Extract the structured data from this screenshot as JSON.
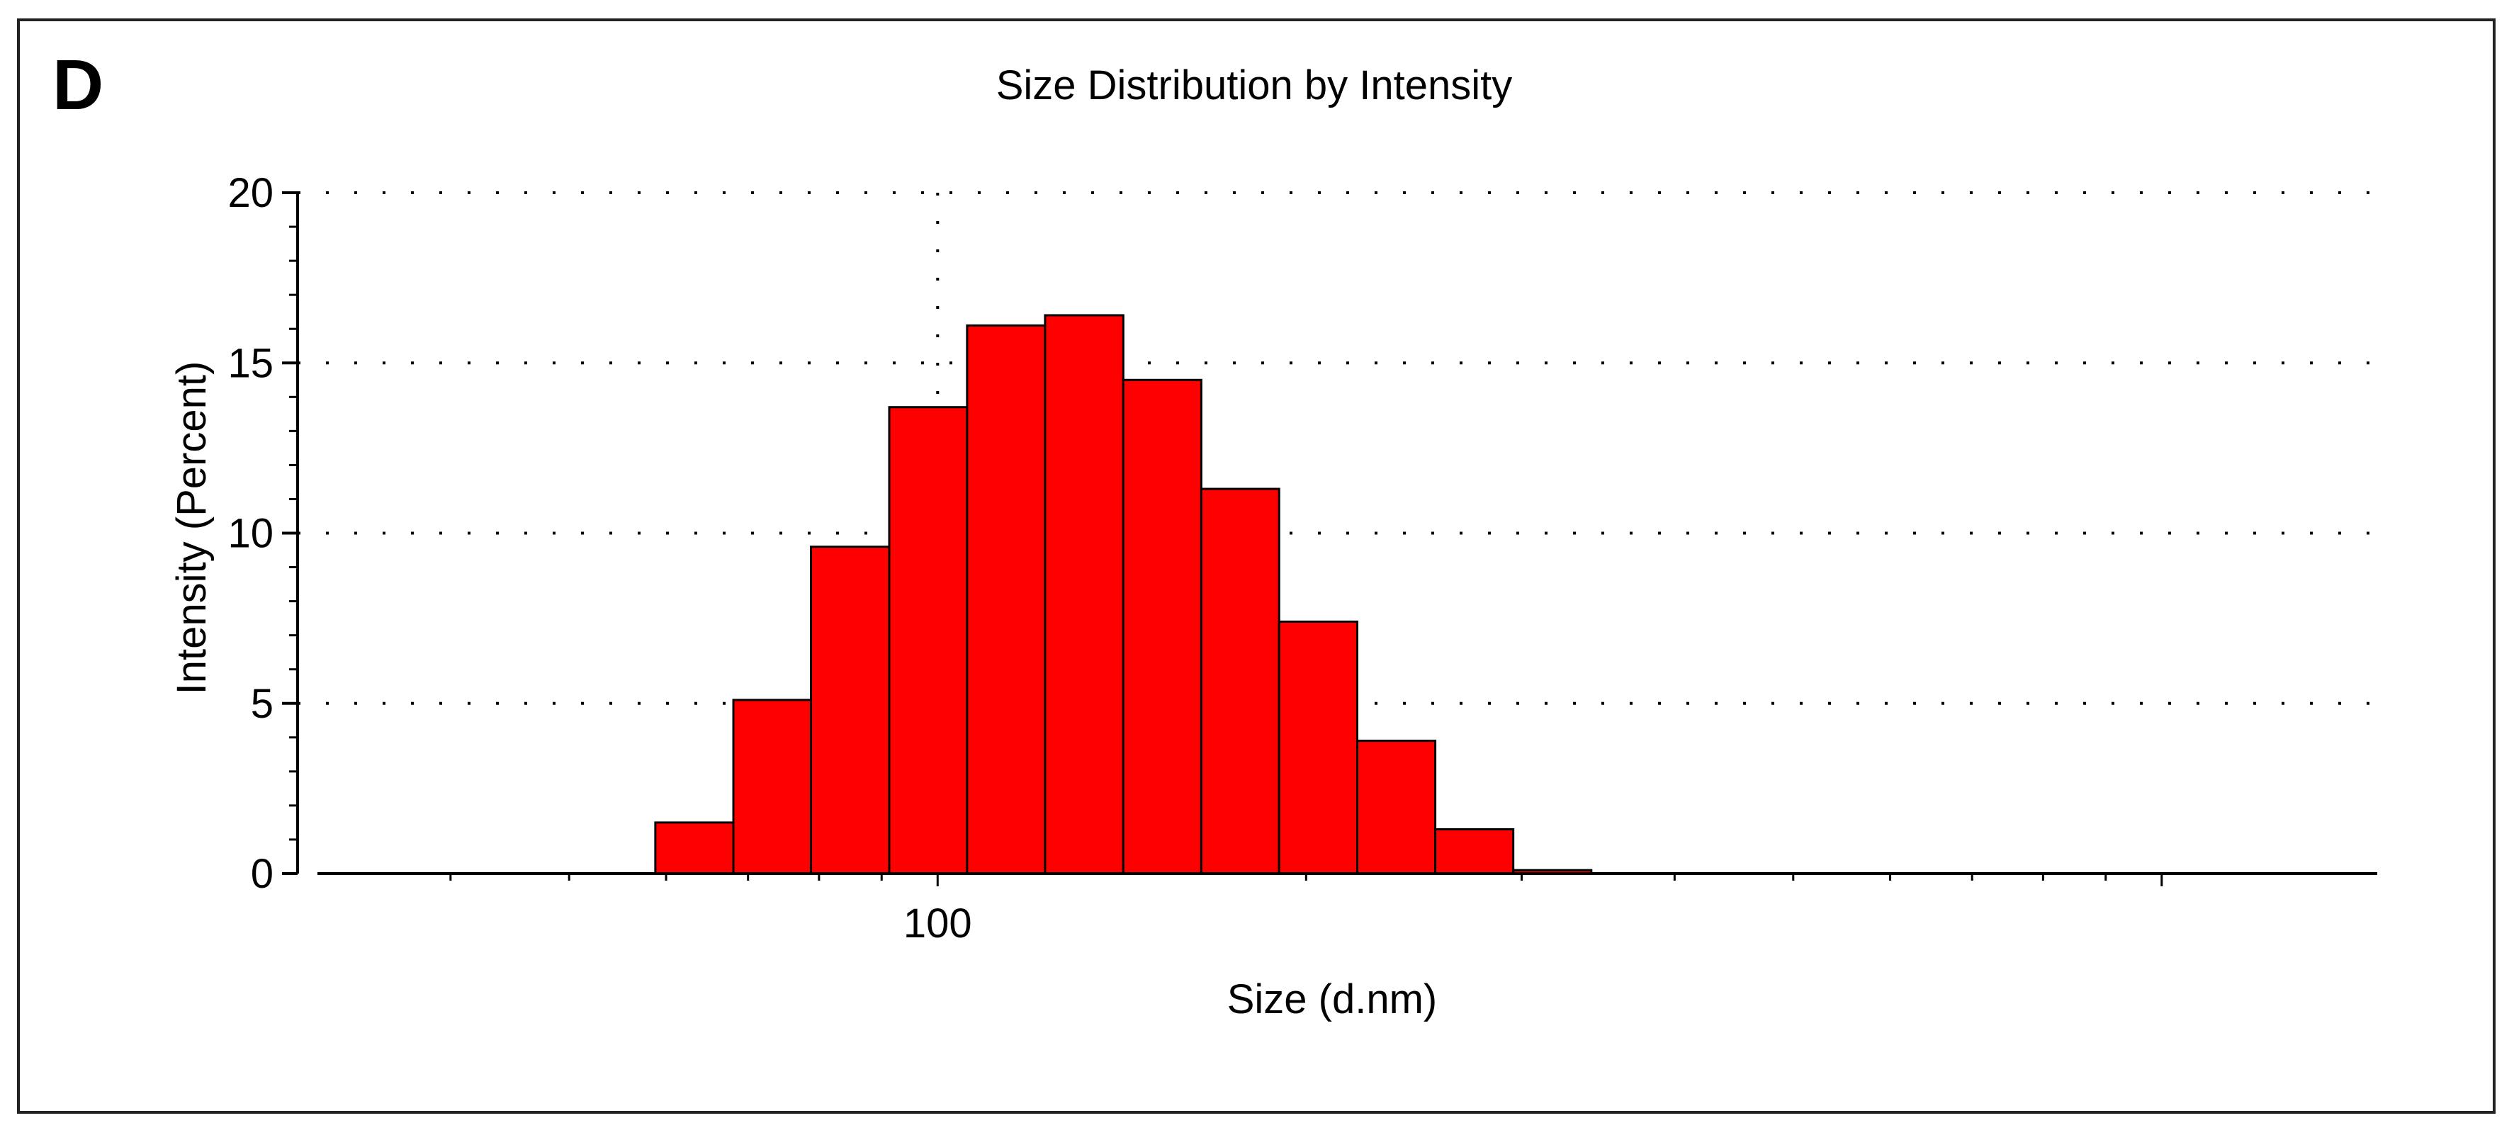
{
  "panel_label": "D",
  "chart_data": {
    "type": "bar",
    "title": "Size Distribution by Intensity",
    "xlabel": "Size (d.nm)",
    "ylabel": "Intensity (Percent)",
    "x_scale": "log",
    "xlim": [
      30,
      1500
    ],
    "ylim": [
      0,
      20
    ],
    "y_ticks": [
      0,
      5,
      10,
      15,
      20
    ],
    "x_tick_labels": [
      {
        "value": 100,
        "label": "100"
      }
    ],
    "grid": true,
    "bar_color": "#ff0000",
    "bins": [
      {
        "x0": 58.8,
        "x1": 68.1,
        "value": 1.5
      },
      {
        "x0": 68.1,
        "x1": 78.8,
        "value": 5.1
      },
      {
        "x0": 78.8,
        "x1": 91.3,
        "value": 9.6
      },
      {
        "x0": 91.3,
        "x1": 105.7,
        "value": 13.7
      },
      {
        "x0": 105.7,
        "x1": 122.4,
        "value": 16.1
      },
      {
        "x0": 122.4,
        "x1": 141.8,
        "value": 16.4
      },
      {
        "x0": 141.8,
        "x1": 164.2,
        "value": 14.5
      },
      {
        "x0": 164.2,
        "x1": 190.1,
        "value": 11.3
      },
      {
        "x0": 190.1,
        "x1": 220.2,
        "value": 7.4
      },
      {
        "x0": 220.2,
        "x1": 255.0,
        "value": 3.9
      },
      {
        "x0": 255.0,
        "x1": 295.3,
        "value": 1.3
      },
      {
        "x0": 295.3,
        "x1": 342.0,
        "value": 0.1
      }
    ]
  }
}
